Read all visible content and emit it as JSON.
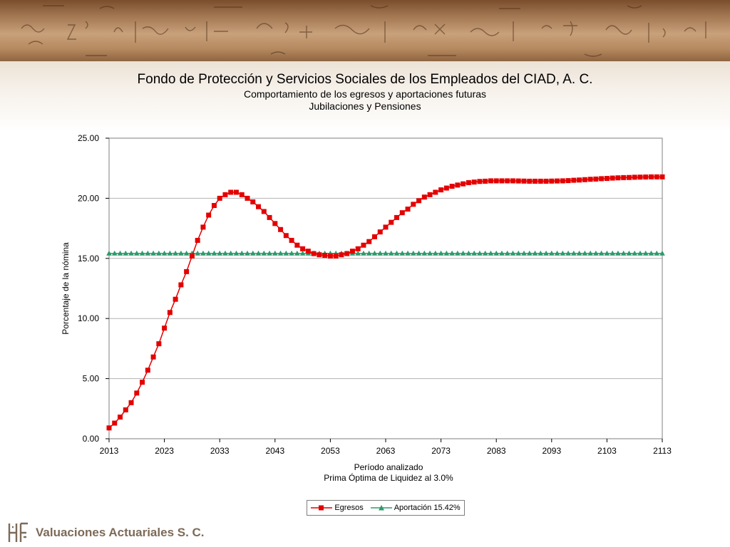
{
  "header": {
    "title": "Fondo de Protección y Servicios Sociales de los Empleados del CIAD, A. C.",
    "subtitle_1": "Comportamiento de los egresos y aportaciones futuras",
    "subtitle_2": "Jubilaciones y Pensiones"
  },
  "footer": {
    "company": "Valuaciones Actuariales S. C."
  },
  "colors": {
    "egresos": "#e30000",
    "aportacion": "#2f9a6c",
    "grid": "#b3b3b3"
  },
  "chart_data": {
    "type": "line",
    "xlabel": "Período analizado",
    "xlabel_2": "Prima Óptima de Liquidez al 3.0%",
    "ylabel": "Porcentaje de la nómina",
    "xlim": [
      2013,
      2113
    ],
    "ylim": [
      0,
      25
    ],
    "x_ticks": [
      "2013",
      "2023",
      "2033",
      "2043",
      "2053",
      "2063",
      "2073",
      "2083",
      "2093",
      "2103",
      "2113"
    ],
    "y_ticks": [
      "0.00",
      "5.00",
      "10.00",
      "15.00",
      "20.00",
      "25.00"
    ],
    "grid": "horizontal",
    "legend_position": "bottom",
    "series": [
      {
        "name": "Egresos",
        "marker": "square",
        "x": [
          2013,
          2014,
          2015,
          2016,
          2017,
          2018,
          2019,
          2020,
          2021,
          2022,
          2023,
          2024,
          2025,
          2026,
          2027,
          2028,
          2029,
          2030,
          2031,
          2032,
          2033,
          2034,
          2035,
          2036,
          2037,
          2038,
          2039,
          2040,
          2041,
          2042,
          2043,
          2044,
          2045,
          2046,
          2047,
          2048,
          2049,
          2050,
          2051,
          2052,
          2053,
          2054,
          2055,
          2056,
          2057,
          2058,
          2059,
          2060,
          2061,
          2062,
          2063,
          2064,
          2065,
          2066,
          2067,
          2068,
          2069,
          2070,
          2071,
          2072,
          2073,
          2074,
          2075,
          2076,
          2077,
          2078,
          2079,
          2080,
          2081,
          2082,
          2083,
          2084,
          2085,
          2086,
          2087,
          2088,
          2089,
          2090,
          2091,
          2092,
          2093,
          2094,
          2095,
          2096,
          2097,
          2098,
          2099,
          2100,
          2101,
          2102,
          2103,
          2104,
          2105,
          2106,
          2107,
          2108,
          2109,
          2110,
          2111,
          2112,
          2113
        ],
        "values": [
          0.9,
          1.3,
          1.8,
          2.4,
          3.0,
          3.8,
          4.7,
          5.7,
          6.8,
          7.9,
          9.2,
          10.5,
          11.6,
          12.8,
          13.9,
          15.2,
          16.5,
          17.6,
          18.6,
          19.4,
          20.0,
          20.3,
          20.5,
          20.5,
          20.3,
          20.0,
          19.7,
          19.3,
          18.9,
          18.4,
          17.9,
          17.4,
          16.9,
          16.5,
          16.1,
          15.8,
          15.6,
          15.4,
          15.3,
          15.25,
          15.2,
          15.2,
          15.3,
          15.4,
          15.6,
          15.8,
          16.1,
          16.4,
          16.8,
          17.2,
          17.6,
          18.0,
          18.4,
          18.8,
          19.1,
          19.5,
          19.8,
          20.1,
          20.3,
          20.5,
          20.7,
          20.85,
          21.0,
          21.1,
          21.2,
          21.3,
          21.35,
          21.4,
          21.42,
          21.45,
          21.45,
          21.45,
          21.45,
          21.45,
          21.44,
          21.43,
          21.42,
          21.42,
          21.42,
          21.42,
          21.43,
          21.44,
          21.45,
          21.47,
          21.5,
          21.52,
          21.55,
          21.58,
          21.6,
          21.63,
          21.65,
          21.68,
          21.7,
          21.72,
          21.73,
          21.75,
          21.76,
          21.77,
          21.78,
          21.78,
          21.78
        ]
      },
      {
        "name": "Aportación 15.42%",
        "marker": "triangle",
        "x": [
          2013,
          2014,
          2015,
          2016,
          2017,
          2018,
          2019,
          2020,
          2021,
          2022,
          2023,
          2024,
          2025,
          2026,
          2027,
          2028,
          2029,
          2030,
          2031,
          2032,
          2033,
          2034,
          2035,
          2036,
          2037,
          2038,
          2039,
          2040,
          2041,
          2042,
          2043,
          2044,
          2045,
          2046,
          2047,
          2048,
          2049,
          2050,
          2051,
          2052,
          2053,
          2054,
          2055,
          2056,
          2057,
          2058,
          2059,
          2060,
          2061,
          2062,
          2063,
          2064,
          2065,
          2066,
          2067,
          2068,
          2069,
          2070,
          2071,
          2072,
          2073,
          2074,
          2075,
          2076,
          2077,
          2078,
          2079,
          2080,
          2081,
          2082,
          2083,
          2084,
          2085,
          2086,
          2087,
          2088,
          2089,
          2090,
          2091,
          2092,
          2093,
          2094,
          2095,
          2096,
          2097,
          2098,
          2099,
          2100,
          2101,
          2102,
          2103,
          2104,
          2105,
          2106,
          2107,
          2108,
          2109,
          2110,
          2111,
          2112,
          2113
        ],
        "value": 15.42
      }
    ]
  }
}
